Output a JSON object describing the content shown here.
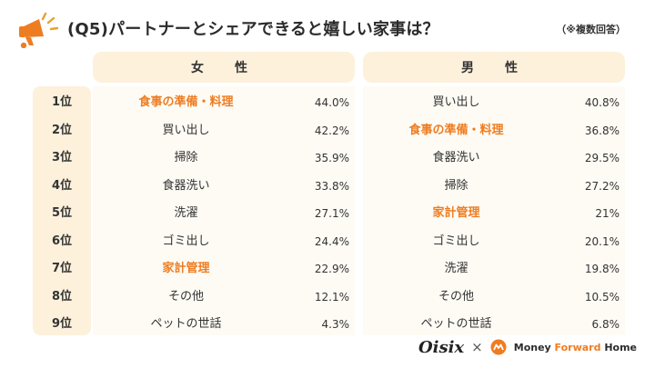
{
  "header": {
    "title": "(Q5)パートナーとシェアできると嬉しい家事は？",
    "note": "（※複数回答）"
  },
  "columns": {
    "female": "女　性",
    "male": "男　性"
  },
  "colors": {
    "highlight": "#ee7d22",
    "panel_bg": "#fdf1dc"
  },
  "rows": [
    {
      "rank": "1位",
      "female_item": "食事の準備・料理",
      "female_pct": "44.0%",
      "female_hl": true,
      "male_item": "買い出し",
      "male_pct": "40.8%",
      "male_hl": false
    },
    {
      "rank": "2位",
      "female_item": "買い出し",
      "female_pct": "42.2%",
      "female_hl": false,
      "male_item": "食事の準備・料理",
      "male_pct": "36.8%",
      "male_hl": true
    },
    {
      "rank": "3位",
      "female_item": "掃除",
      "female_pct": "35.9%",
      "female_hl": false,
      "male_item": "食器洗い",
      "male_pct": "29.5%",
      "male_hl": false
    },
    {
      "rank": "4位",
      "female_item": "食器洗い",
      "female_pct": "33.8%",
      "female_hl": false,
      "male_item": "掃除",
      "male_pct": "27.2%",
      "male_hl": false
    },
    {
      "rank": "5位",
      "female_item": "洗濯",
      "female_pct": "27.1%",
      "female_hl": false,
      "male_item": "家計管理",
      "male_pct": "21%",
      "male_hl": true
    },
    {
      "rank": "6位",
      "female_item": "ゴミ出し",
      "female_pct": "24.4%",
      "female_hl": false,
      "male_item": "ゴミ出し",
      "male_pct": "20.1%",
      "male_hl": false
    },
    {
      "rank": "7位",
      "female_item": "家計管理",
      "female_pct": "22.9%",
      "female_hl": true,
      "male_item": "洗濯",
      "male_pct": "19.8%",
      "male_hl": false
    },
    {
      "rank": "8位",
      "female_item": "その他",
      "female_pct": "12.1%",
      "female_hl": false,
      "male_item": "その他",
      "male_pct": "10.5%",
      "male_hl": false
    },
    {
      "rank": "9位",
      "female_item": "ペットの世話",
      "female_pct": "4.3%",
      "female_hl": false,
      "male_item": "ペットの世話",
      "male_pct": "6.8%",
      "male_hl": false
    }
  ],
  "footer": {
    "brand1": "Oisix",
    "separator": "×",
    "brand2_a": "Money ",
    "brand2_b": "Forward",
    "brand2_c": " Home"
  },
  "icons": {
    "header": "megaphone-icon",
    "brand2": "money-forward-logo-icon"
  }
}
